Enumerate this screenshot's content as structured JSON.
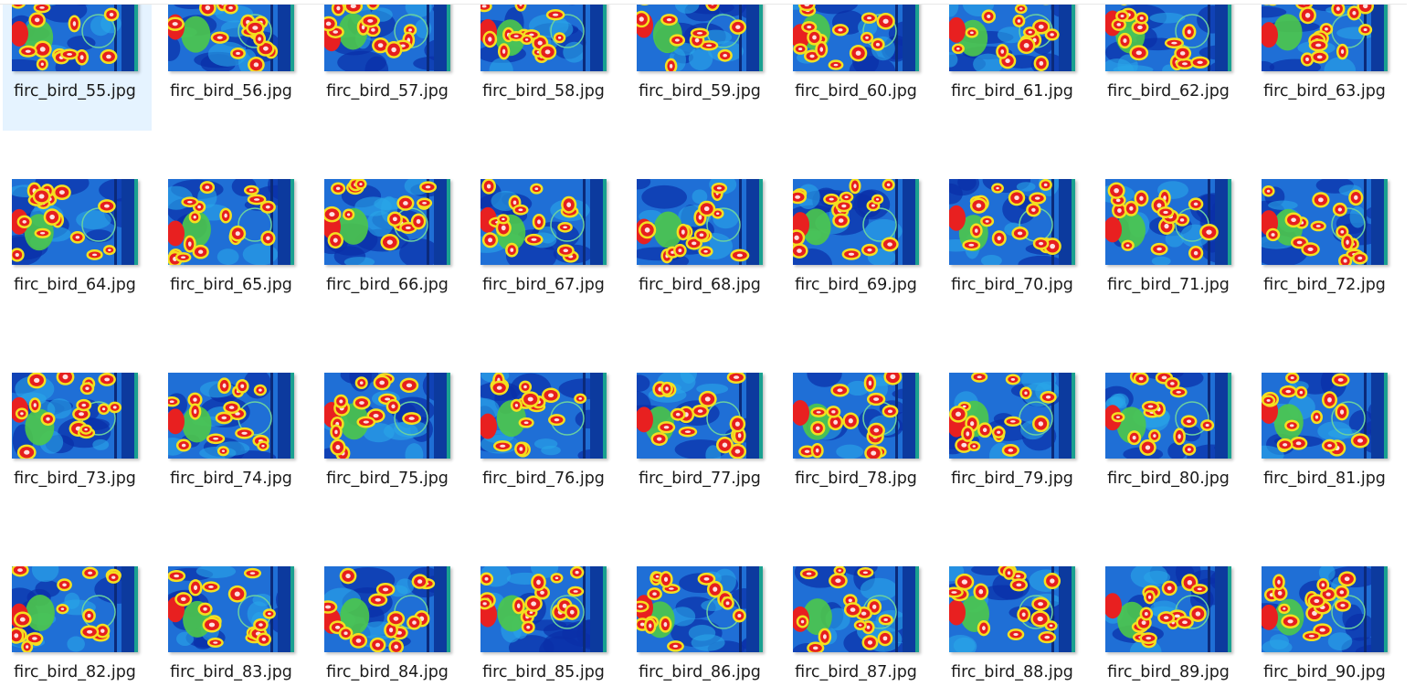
{
  "files": [
    "firc_bird_55.jpg",
    "firc_bird_56.jpg",
    "firc_bird_57.jpg",
    "firc_bird_58.jpg",
    "firc_bird_59.jpg",
    "firc_bird_60.jpg",
    "firc_bird_61.jpg",
    "firc_bird_62.jpg",
    "firc_bird_63.jpg",
    "firc_bird_64.jpg",
    "firc_bird_65.jpg",
    "firc_bird_66.jpg",
    "firc_bird_67.jpg",
    "firc_bird_68.jpg",
    "firc_bird_69.jpg",
    "firc_bird_70.jpg",
    "firc_bird_71.jpg",
    "firc_bird_72.jpg",
    "firc_bird_73.jpg",
    "firc_bird_74.jpg",
    "firc_bird_75.jpg",
    "firc_bird_76.jpg",
    "firc_bird_77.jpg",
    "firc_bird_78.jpg",
    "firc_bird_79.jpg",
    "firc_bird_80.jpg",
    "firc_bird_81.jpg",
    "firc_bird_82.jpg",
    "firc_bird_83.jpg",
    "firc_bird_84.jpg",
    "firc_bird_85.jpg",
    "firc_bird_86.jpg",
    "firc_bird_87.jpg",
    "firc_bird_88.jpg",
    "firc_bird_89.jpg",
    "firc_bird_90.jpg"
  ]
}
